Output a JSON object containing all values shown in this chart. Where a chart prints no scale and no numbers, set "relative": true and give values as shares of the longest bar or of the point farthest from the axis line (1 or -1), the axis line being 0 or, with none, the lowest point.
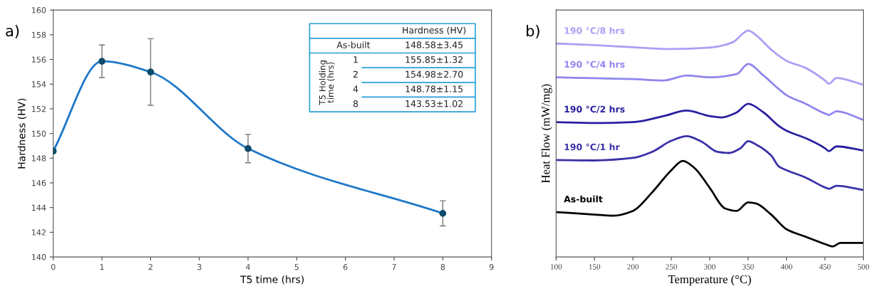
{
  "chart_data": [
    {
      "type": "line",
      "title": "a)",
      "xlabel": "T5 time (hrs)",
      "ylabel": "Hardness (HV)",
      "x": [
        0,
        1,
        2,
        4,
        8
      ],
      "xlim": [
        0,
        9
      ],
      "xticks": [
        0,
        1,
        2,
        3,
        4,
        5,
        6,
        7,
        8,
        9
      ],
      "ylim": [
        140,
        160
      ],
      "yticks": [
        140,
        142,
        144,
        146,
        148,
        150,
        152,
        154,
        156,
        158,
        160
      ],
      "marker": "circle",
      "line_style": "solid",
      "grid": false,
      "legend": false,
      "series": [
        {
          "color": "#1f78c8",
          "values": [
            148.58,
            155.85,
            154.98,
            148.78,
            143.53
          ],
          "errors": [
            null,
            1.32,
            2.7,
            1.15,
            1.02
          ]
        }
      ],
      "annotations": [
        "Hardness (HV)",
        "As-built",
        "T5 Holding time (hrs)",
        "1",
        "2",
        "4",
        "8",
        "148.58±3.45",
        "155.85±1.32",
        "154.98±2.70",
        "148.78±1.15",
        "143.53±1.02"
      ]
    },
    {
      "type": "line",
      "title": "b)",
      "xlabel": "Temperature (°C)",
      "ylabel": "Heat Flow (mW/mg)",
      "relative": true,
      "xlim": [
        100,
        500
      ],
      "xticks": [
        100,
        150,
        200,
        250,
        300,
        350,
        400,
        450,
        500
      ],
      "line_style": "solid",
      "grid": false,
      "legend": false,
      "series": [
        {
          "name": "190 °C/8 hrs",
          "color": "#a9a0f5",
          "x": [
            100,
            150,
            200,
            250,
            300,
            330,
            345,
            350,
            360,
            380,
            400,
            425,
            450,
            455,
            465,
            500
          ],
          "values": [
            0.942,
            0.935,
            0.926,
            0.918,
            0.924,
            0.948,
            0.991,
            1,
            0.98,
            0.915,
            0.866,
            0.834,
            0.779,
            0.765,
            0.79,
            0.76
          ]
        },
        {
          "name": "190 °C/4 hrs",
          "color": "#8f86ee",
          "x": [
            100,
            150,
            200,
            240,
            270,
            300,
            335,
            350,
            370,
            390,
            400,
            425,
            450,
            455,
            465,
            500
          ],
          "values": [
            0.793,
            0.789,
            0.785,
            0.779,
            0.801,
            0.793,
            0.807,
            0.852,
            0.801,
            0.741,
            0.714,
            0.676,
            0.633,
            0.627,
            0.643,
            0.605
          ]
        },
        {
          "name": "190 °C/2 hrs",
          "color": "#2a1fa0",
          "x": [
            100,
            150,
            200,
            240,
            270,
            300,
            315,
            335,
            350,
            370,
            390,
            400,
            425,
            450,
            455,
            465,
            500
          ],
          "values": [
            0.595,
            0.591,
            0.595,
            0.622,
            0.646,
            0.622,
            0.616,
            0.638,
            0.676,
            0.638,
            0.578,
            0.557,
            0.524,
            0.48,
            0.467,
            0.488,
            0.47
          ]
        },
        {
          "name": "190 °C/1 hr",
          "color": "#3a30a8",
          "x": [
            100,
            150,
            200,
            225,
            250,
            270,
            290,
            310,
            325,
            340,
            350,
            360,
            380,
            390,
            400,
            425,
            450,
            455,
            465,
            500
          ],
          "values": [
            0.428,
            0.426,
            0.437,
            0.464,
            0.513,
            0.533,
            0.508,
            0.464,
            0.459,
            0.48,
            0.511,
            0.497,
            0.448,
            0.399,
            0.383,
            0.35,
            0.307,
            0.301,
            0.314,
            0.296
          ]
        },
        {
          "name": "As-built",
          "color": "#000000",
          "x": [
            100,
            150,
            175,
            200,
            225,
            250,
            265,
            280,
            300,
            320,
            335,
            350,
            360,
            380,
            400,
            425,
            450,
            460,
            470,
            500
          ],
          "values": [
            0.198,
            0.187,
            0.182,
            0.203,
            0.285,
            0.383,
            0.424,
            0.393,
            0.305,
            0.214,
            0.203,
            0.241,
            0.236,
            0.187,
            0.122,
            0.089,
            0.057,
            0.046,
            0.062,
            0.062
          ]
        }
      ]
    }
  ]
}
